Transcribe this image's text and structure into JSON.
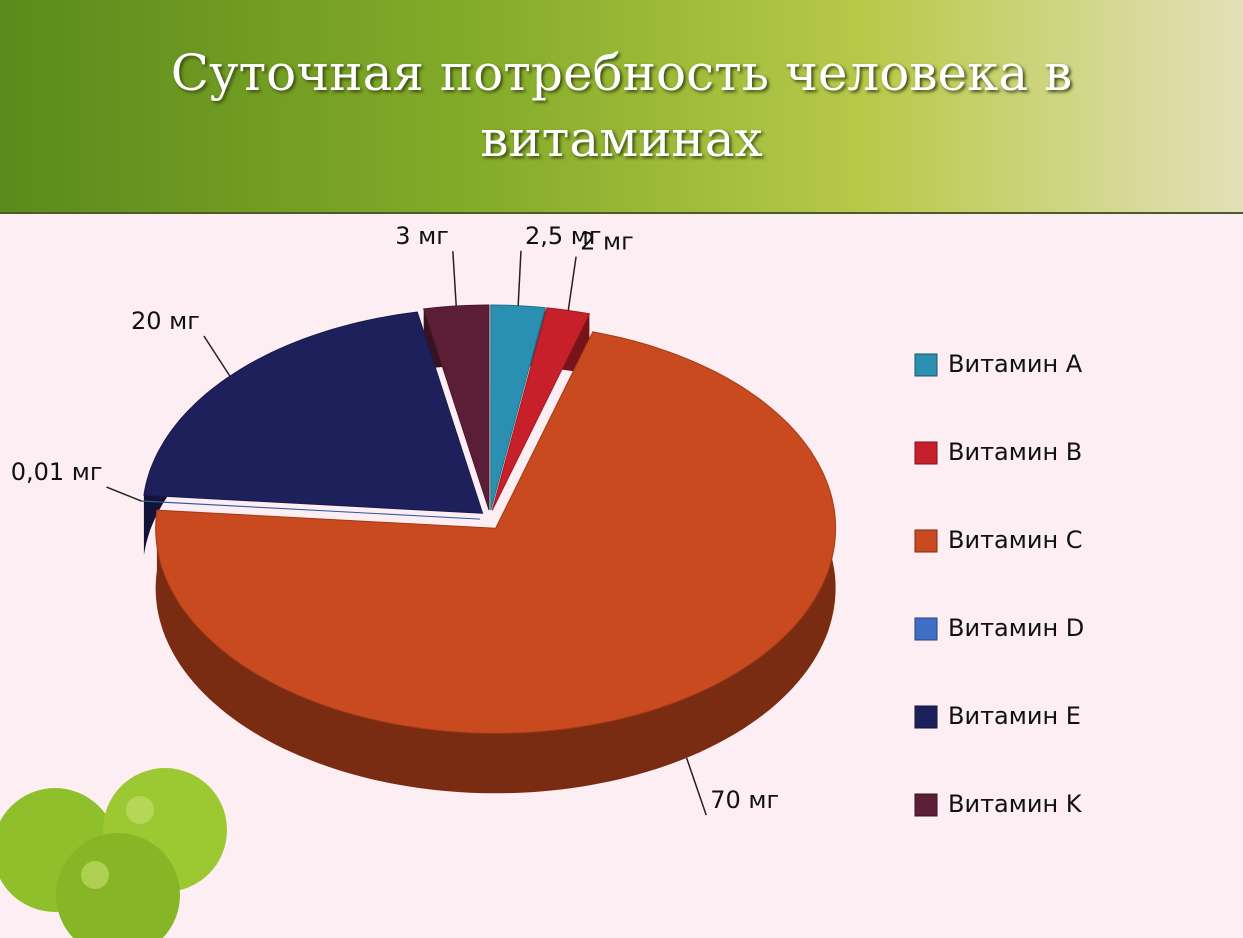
{
  "chart_data": {
    "type": "pie",
    "title": "Суточная потребность человека в витаминах",
    "categories": [
      "Витамин A",
      "Витамин B",
      "Витамин C",
      "Витамин D",
      "Витамин E",
      "Витамин K"
    ],
    "values": [
      2.5,
      2,
      70,
      0.01,
      20,
      3
    ],
    "value_labels": [
      "2,5 мг",
      "2 мг",
      "70 мг",
      "0,01 мг",
      "20 мг",
      "3 мг"
    ],
    "colors": [
      "#2a8fb0",
      "#c8202a",
      "#c94a1e",
      "#3f6fc4",
      "#1e205c",
      "#5c1e36"
    ],
    "legend": "right"
  }
}
